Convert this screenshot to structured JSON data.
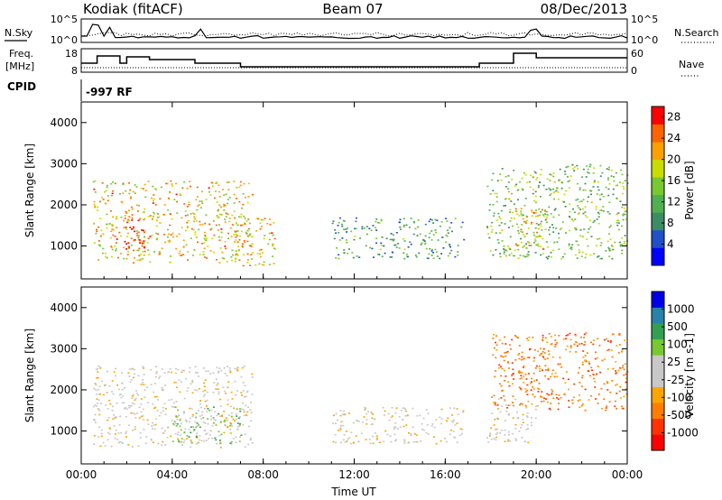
{
  "header": {
    "station": "Kodiak (fitACF)",
    "beam": "Beam 07",
    "date": "08/Dec/2013"
  },
  "noise_panel": {
    "left_label": "N.Sky",
    "right_label": "N.Search",
    "left_ticks": [
      "10^5",
      "10^0"
    ],
    "right_ticks": [
      "10^5",
      "10^0"
    ]
  },
  "freq_panel": {
    "left_label_line1": "Freq.",
    "left_label_line2": "[MHz]",
    "right_label": "Nave",
    "left_ticks": [
      "18",
      "8"
    ],
    "right_ticks": [
      "60",
      "0"
    ]
  },
  "cpid": {
    "label": "CPID",
    "value": "-997 RF"
  },
  "time_axis": {
    "xlabel": "Time UT",
    "ticks": [
      "00:00",
      "04:00",
      "08:00",
      "12:00",
      "16:00",
      "20:00",
      "00:00"
    ]
  },
  "colors": {
    "power_scale": [
      "#0000ff",
      "#2050c8",
      "#3c8c64",
      "#50b050",
      "#78c832",
      "#c8dc00",
      "#ffa000",
      "#ff6400",
      "#ff0000"
    ],
    "velocity_scale": [
      "#ff0000",
      "#ff3200",
      "#ff7d00",
      "#ffa500",
      "#c8c8c8",
      "#c8c8c8",
      "#78c832",
      "#32a050",
      "#2882aa",
      "#0000e6"
    ]
  },
  "chart_data": [
    {
      "type": "heatmap",
      "title": "",
      "xlabel": "",
      "ylabel": "Slant Range [km]",
      "yticks": [
        "1000",
        "2000",
        "3000",
        "4000"
      ],
      "ylim": [
        200,
        4500
      ],
      "xlim_hours": [
        0,
        24
      ],
      "colorbar": {
        "label": "Power [dB]",
        "ticks": [
          "4",
          "8",
          "12",
          "16",
          "20",
          "24",
          "28"
        ],
        "range": [
          0,
          30
        ]
      },
      "regions": [
        {
          "t": [
            0.5,
            7.5
          ],
          "range": [
            600,
            2600
          ],
          "value": 24
        },
        {
          "t": [
            1.5,
            3.0
          ],
          "range": [
            900,
            1700
          ],
          "value": 29
        },
        {
          "t": [
            6.5,
            8.5
          ],
          "range": [
            500,
            1700
          ],
          "value": 22
        },
        {
          "t": [
            11.0,
            16.8
          ],
          "range": [
            700,
            1700
          ],
          "value": 10
        },
        {
          "t": [
            17.8,
            24.0
          ],
          "range": [
            700,
            3000
          ],
          "value": 14
        },
        {
          "t": [
            19.0,
            20.5
          ],
          "range": [
            900,
            2000
          ],
          "value": 24
        }
      ]
    },
    {
      "type": "heatmap",
      "title": "",
      "xlabel": "Time UT",
      "ylabel": "Slant Range [km]",
      "yticks": [
        "1000",
        "2000",
        "3000",
        "4000"
      ],
      "ylim": [
        200,
        4500
      ],
      "xlim_hours": [
        0,
        24
      ],
      "colorbar": {
        "label": "Velocity [m s-1]",
        "ticks": [
          "1000",
          "500",
          "100",
          "25",
          "-25",
          "-100",
          "-500",
          "-1000"
        ]
      },
      "regions": [
        {
          "t": [
            0.5,
            7.5
          ],
          "range": [
            600,
            2600
          ],
          "value": 0
        },
        {
          "t": [
            4.0,
            7.0
          ],
          "range": [
            700,
            1600
          ],
          "value": 100
        },
        {
          "t": [
            11.0,
            16.8
          ],
          "range": [
            700,
            1600
          ],
          "value": 0
        },
        {
          "t": [
            18.0,
            24.0
          ],
          "range": [
            1500,
            3400
          ],
          "value": -150
        },
        {
          "t": [
            17.8,
            20.0
          ],
          "range": [
            700,
            1800
          ],
          "value": 50
        }
      ]
    }
  ]
}
